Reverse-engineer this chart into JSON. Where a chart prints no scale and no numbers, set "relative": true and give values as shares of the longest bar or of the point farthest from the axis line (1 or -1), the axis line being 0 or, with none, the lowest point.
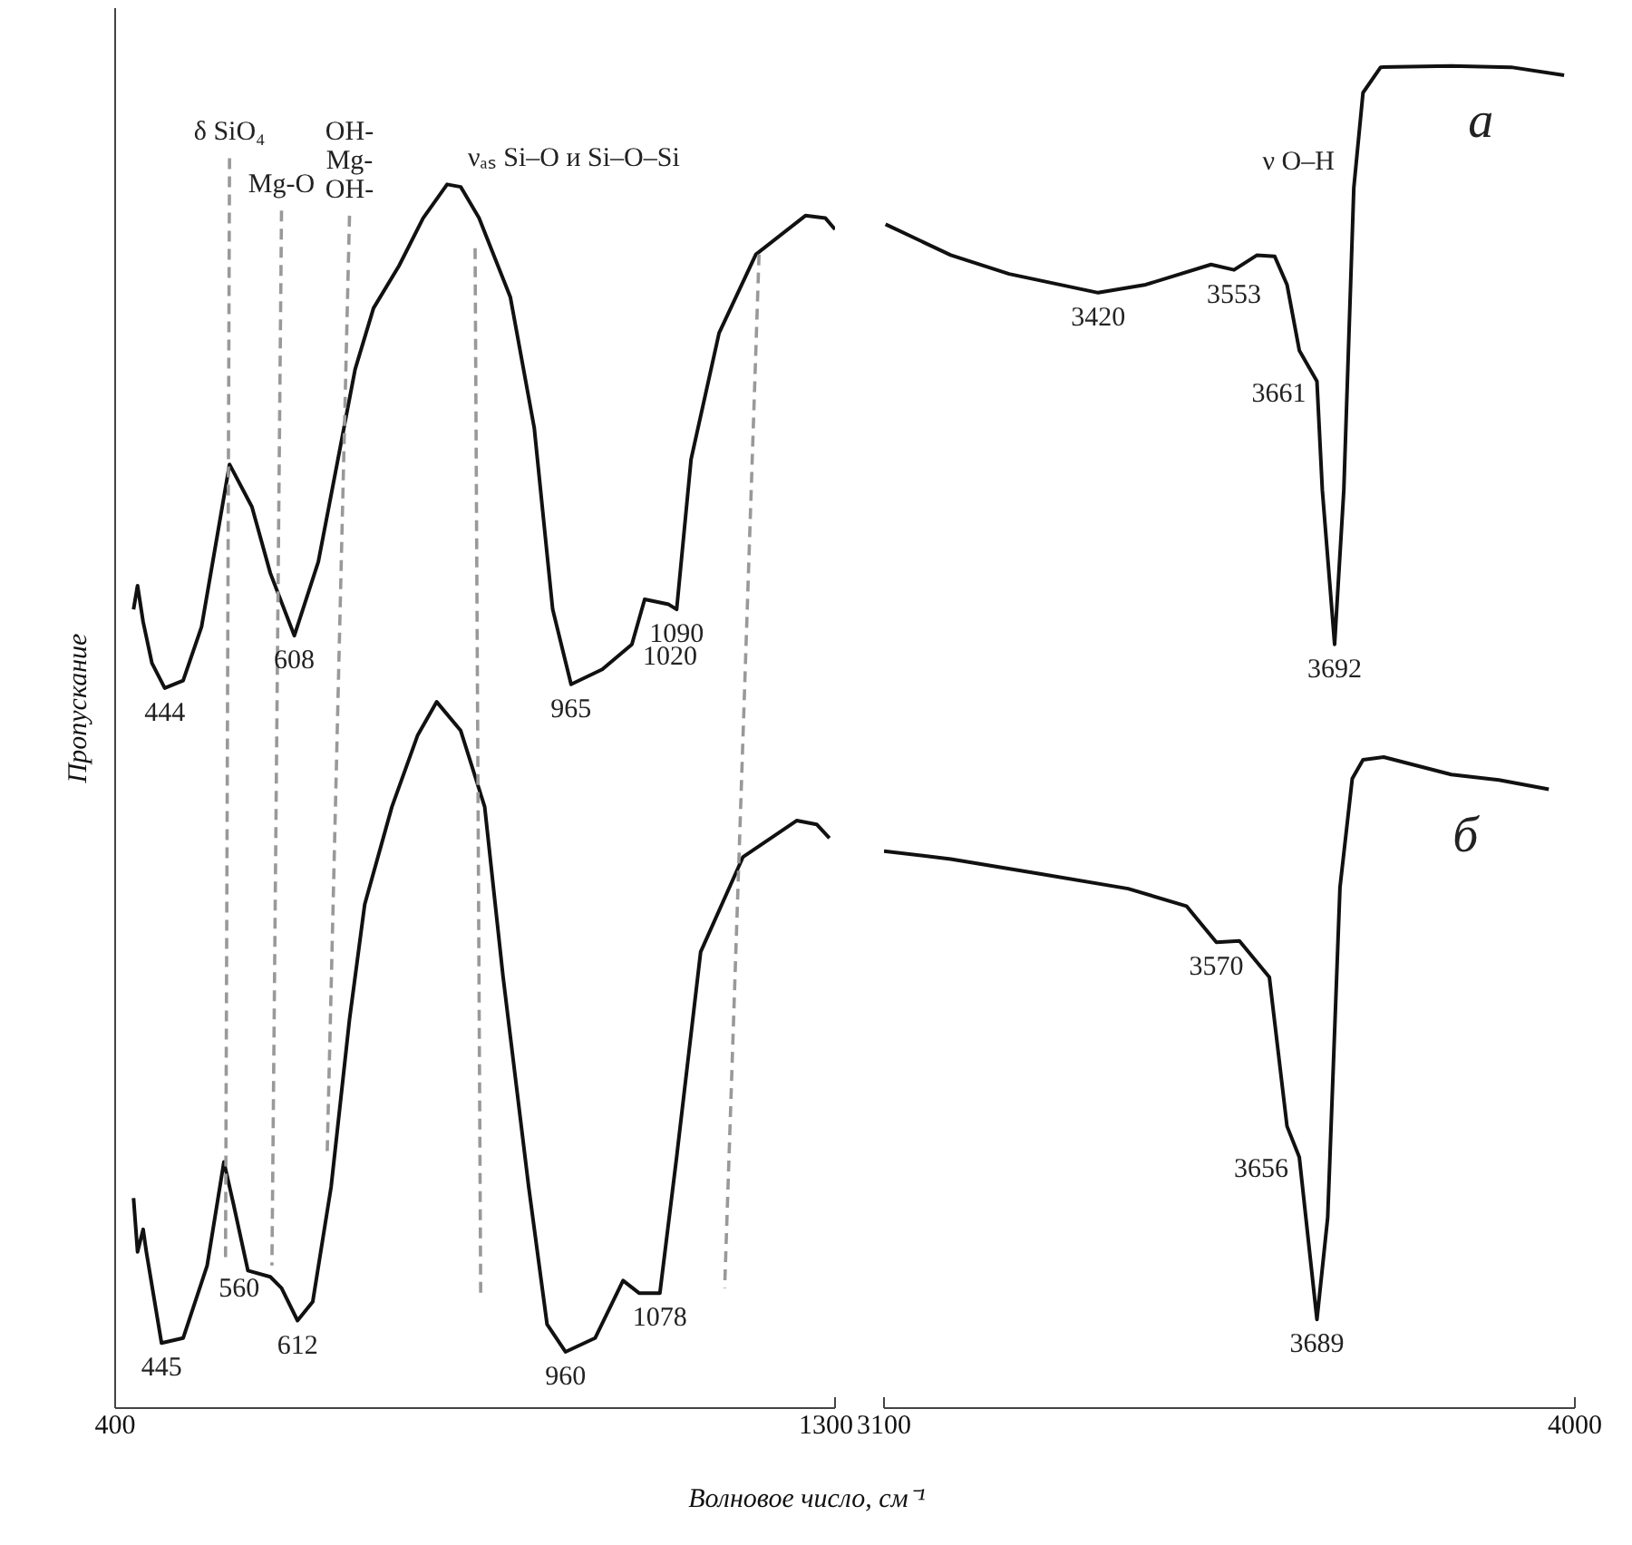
{
  "chart_data": [
    {
      "type": "line",
      "relative": true,
      "ylabel": "Пропускание",
      "xlabel": "Волновое число, см⁻¹",
      "xlim": [
        400,
        1300
      ],
      "xticks": [
        400,
        1300
      ],
      "tick_labels": "x",
      "series": [
        {
          "color": "#111111",
          "x": [
            423,
            428,
            435,
            446,
            462,
            485,
            508,
            543,
            571,
            594,
            624,
            654,
            686,
            700,
            723,
            755,
            785,
            815,
            832,
            855,
            894,
            924,
            947,
            970,
            1009,
            1046,
            1062,
            1092,
            1102,
            1120,
            1155,
            1201,
            1263,
            1288,
            1300
          ],
          "values": [
            0.639,
            0.658,
            0.629,
            0.596,
            0.576,
            0.582,
            0.625,
            0.755,
            0.721,
            0.668,
            0.618,
            0.677,
            0.784,
            0.831,
            0.88,
            0.914,
            0.952,
            0.979,
            0.977,
            0.952,
            0.889,
            0.784,
            0.639,
            0.579,
            0.591,
            0.611,
            0.647,
            0.643,
            0.639,
            0.759,
            0.86,
            0.923,
            0.954,
            0.952,
            0.943
          ]
        },
        {
          "color": "#111111",
          "x": [
            423,
            428,
            435,
            439,
            458,
            485,
            515,
            536,
            548,
            566,
            594,
            608,
            628,
            647,
            670,
            693,
            712,
            746,
            778,
            802,
            832,
            862,
            885,
            917,
            940,
            963,
            1000,
            1035,
            1055,
            1081,
            1102,
            1132,
            1185,
            1252,
            1277,
            1293
          ],
          "values": [
            0.168,
            0.125,
            0.143,
            0.125,
            0.052,
            0.056,
            0.114,
            0.197,
            0.163,
            0.11,
            0.105,
            0.096,
            0.07,
            0.085,
            0.177,
            0.311,
            0.403,
            0.481,
            0.538,
            0.565,
            0.542,
            0.481,
            0.345,
            0.177,
            0.067,
            0.045,
            0.056,
            0.102,
            0.092,
            0.092,
            0.201,
            0.365,
            0.441,
            0.47,
            0.467,
            0.456
          ]
        },
        {
          "color": "#999999",
          "line_style": "dashed",
          "x": [
            543,
            538
          ],
          "values": [
            1.0,
            0.12
          ]
        },
        {
          "color": "#999999",
          "line_style": "dashed",
          "x": [
            608,
            596
          ],
          "values": [
            0.958,
            0.114
          ]
        },
        {
          "color": "#999999",
          "line_style": "dashed",
          "x": [
            693,
            665
          ],
          "values": [
            0.954,
            0.201
          ]
        },
        {
          "color": "#999999",
          "line_style": "dashed",
          "x": [
            850,
            857
          ],
          "values": [
            0.928,
            0.091
          ]
        },
        {
          "color": "#999999",
          "line_style": "dashed",
          "x": [
            1205,
            1162
          ],
          "values": [
            0.923,
            0.096
          ]
        }
      ],
      "annotations": [
        {
          "text": "δ SiO₄",
          "x": 543,
          "y": 1.0
        },
        {
          "text": "Mg-O",
          "x": 608,
          "y": 0.958
        },
        {
          "text": "OH-\nMg-\nOH-",
          "x": 693,
          "y": 0.954
        },
        {
          "text": "νₐₛ Si–O и Si–O–Si",
          "x": 850,
          "y": 0.928
        },
        {
          "text": "444",
          "x": 462,
          "y": 0.576
        },
        {
          "text": "608",
          "x": 624,
          "y": 0.618
        },
        {
          "text": "965",
          "x": 970,
          "y": 0.579
        },
        {
          "text": "1020",
          "x": 1046,
          "y": 0.611
        },
        {
          "text": "1090",
          "x": 1102,
          "y": 0.639
        },
        {
          "text": "445",
          "x": 458,
          "y": 0.052
        },
        {
          "text": "560",
          "x": 594,
          "y": 0.105
        },
        {
          "text": "612",
          "x": 628,
          "y": 0.07
        },
        {
          "text": "960",
          "x": 963,
          "y": 0.045
        },
        {
          "text": "1078",
          "x": 1081,
          "y": 0.092
        }
      ]
    },
    {
      "type": "line",
      "relative": true,
      "xlim": [
        3100,
        4000
      ],
      "xticks": [
        3100,
        4000
      ],
      "tick_labels": "x",
      "series": [
        {
          "name": "а",
          "color": "#111111",
          "x": [
            3102,
            3187,
            3263,
            3379,
            3441,
            3526,
            3556,
            3586,
            3609,
            3625,
            3641,
            3664,
            3671,
            3687,
            3699,
            3712,
            3724,
            3747,
            3839,
            3917,
            3986
          ],
          "values": [
            0.882,
            0.859,
            0.845,
            0.831,
            0.837,
            0.852,
            0.848,
            0.859,
            0.858,
            0.837,
            0.788,
            0.765,
            0.684,
            0.569,
            0.684,
            0.909,
            0.98,
            0.999,
            1.0,
            0.999,
            0.993
          ]
        },
        {
          "name": "б",
          "color": "#111111",
          "x": [
            3100,
            3187,
            3303,
            3418,
            3494,
            3533,
            3563,
            3602,
            3625,
            3641,
            3664,
            3678,
            3694,
            3710,
            3724,
            3751,
            3839,
            3901,
            3966
          ],
          "values": [
            0.415,
            0.409,
            0.398,
            0.387,
            0.374,
            0.347,
            0.348,
            0.321,
            0.21,
            0.187,
            0.066,
            0.142,
            0.388,
            0.469,
            0.483,
            0.485,
            0.472,
            0.468,
            0.461
          ]
        }
      ],
      "annotations": [
        "ν O–H",
        {
          "text": "3420",
          "x": 3379,
          "y": 0.831
        },
        {
          "text": "3553",
          "x": 3556,
          "y": 0.848
        },
        {
          "text": "3661",
          "x": 3664,
          "y": 0.765
        },
        {
          "text": "3692",
          "x": 3687,
          "y": 0.569
        },
        {
          "text": "3570",
          "x": 3533,
          "y": 0.347
        },
        {
          "text": "3656",
          "x": 3641,
          "y": 0.187
        },
        {
          "text": "3689",
          "x": 3664,
          "y": 0.066
        }
      ]
    }
  ]
}
